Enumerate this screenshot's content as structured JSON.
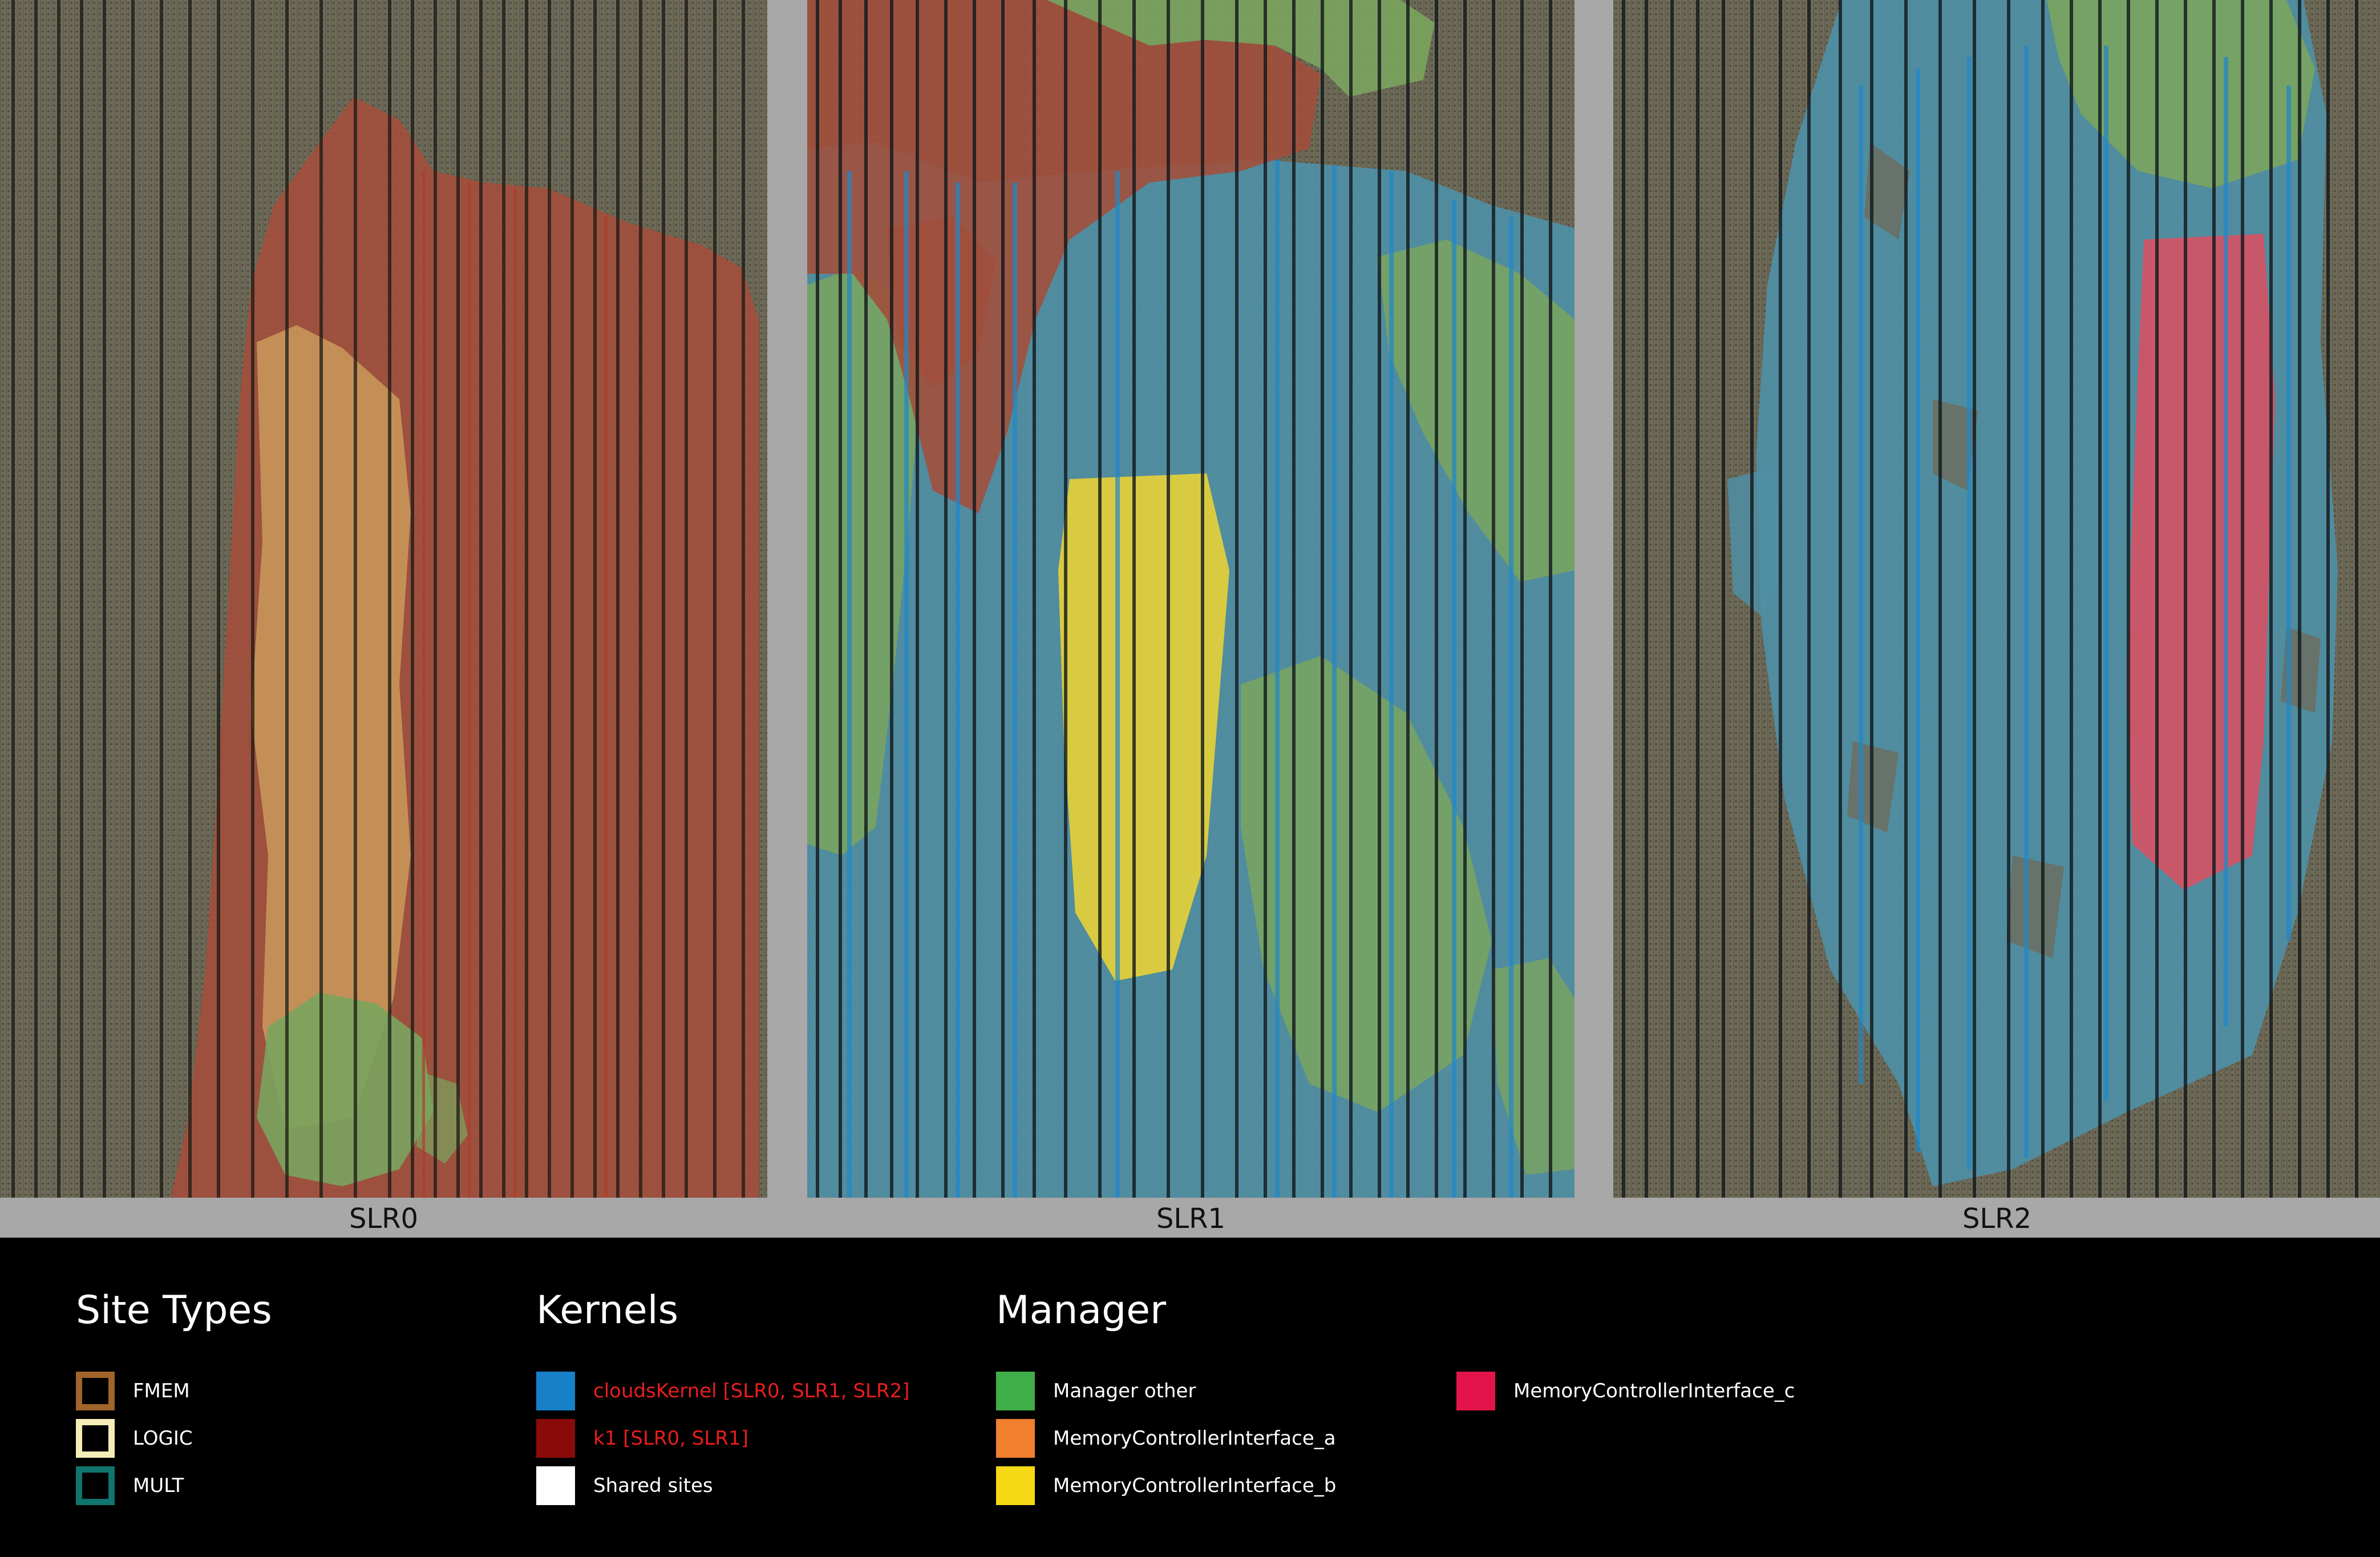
{
  "panels": [
    {
      "label": "SLR0"
    },
    {
      "label": "SLR1"
    },
    {
      "label": "SLR2"
    }
  ],
  "legend": {
    "site_types": {
      "title": "Site Types",
      "items": [
        {
          "label": "FMEM",
          "color": "#a0652a"
        },
        {
          "label": "LOGIC",
          "color": "#f5edb8"
        },
        {
          "label": "MULT",
          "color": "#10746f"
        }
      ]
    },
    "kernels": {
      "title": "Kernels",
      "items": [
        {
          "label": "cloudsKernel [SLR0, SLR1, SLR2]",
          "color": "#1781c8"
        },
        {
          "label": "k1 [SLR0, SLR1]",
          "color": "#8a0a0a"
        },
        {
          "label": "Shared sites",
          "color": "#ffffff"
        }
      ]
    },
    "manager": {
      "title": "Manager",
      "items": [
        {
          "label": "Manager other",
          "color": "#3fae48"
        },
        {
          "label": "MemoryControllerInterface_a",
          "color": "#f07f2e"
        },
        {
          "label": "MemoryControllerInterface_b",
          "color": "#f5d915"
        },
        {
          "label": "MemoryControllerInterface_c",
          "color": "#e31449"
        }
      ]
    }
  },
  "colors": {
    "background": "#000000",
    "panel_frame": "#a8a8a8",
    "unused_site": "#6e6a58",
    "k1_region": "#a14f3c",
    "clouds_region": "#4f8ea3",
    "manager_other_region": "#7aa45e",
    "mci_a_region": "#c9965a",
    "mci_b_region": "#e0cf3c",
    "mci_c_region": "#cf5466"
  }
}
